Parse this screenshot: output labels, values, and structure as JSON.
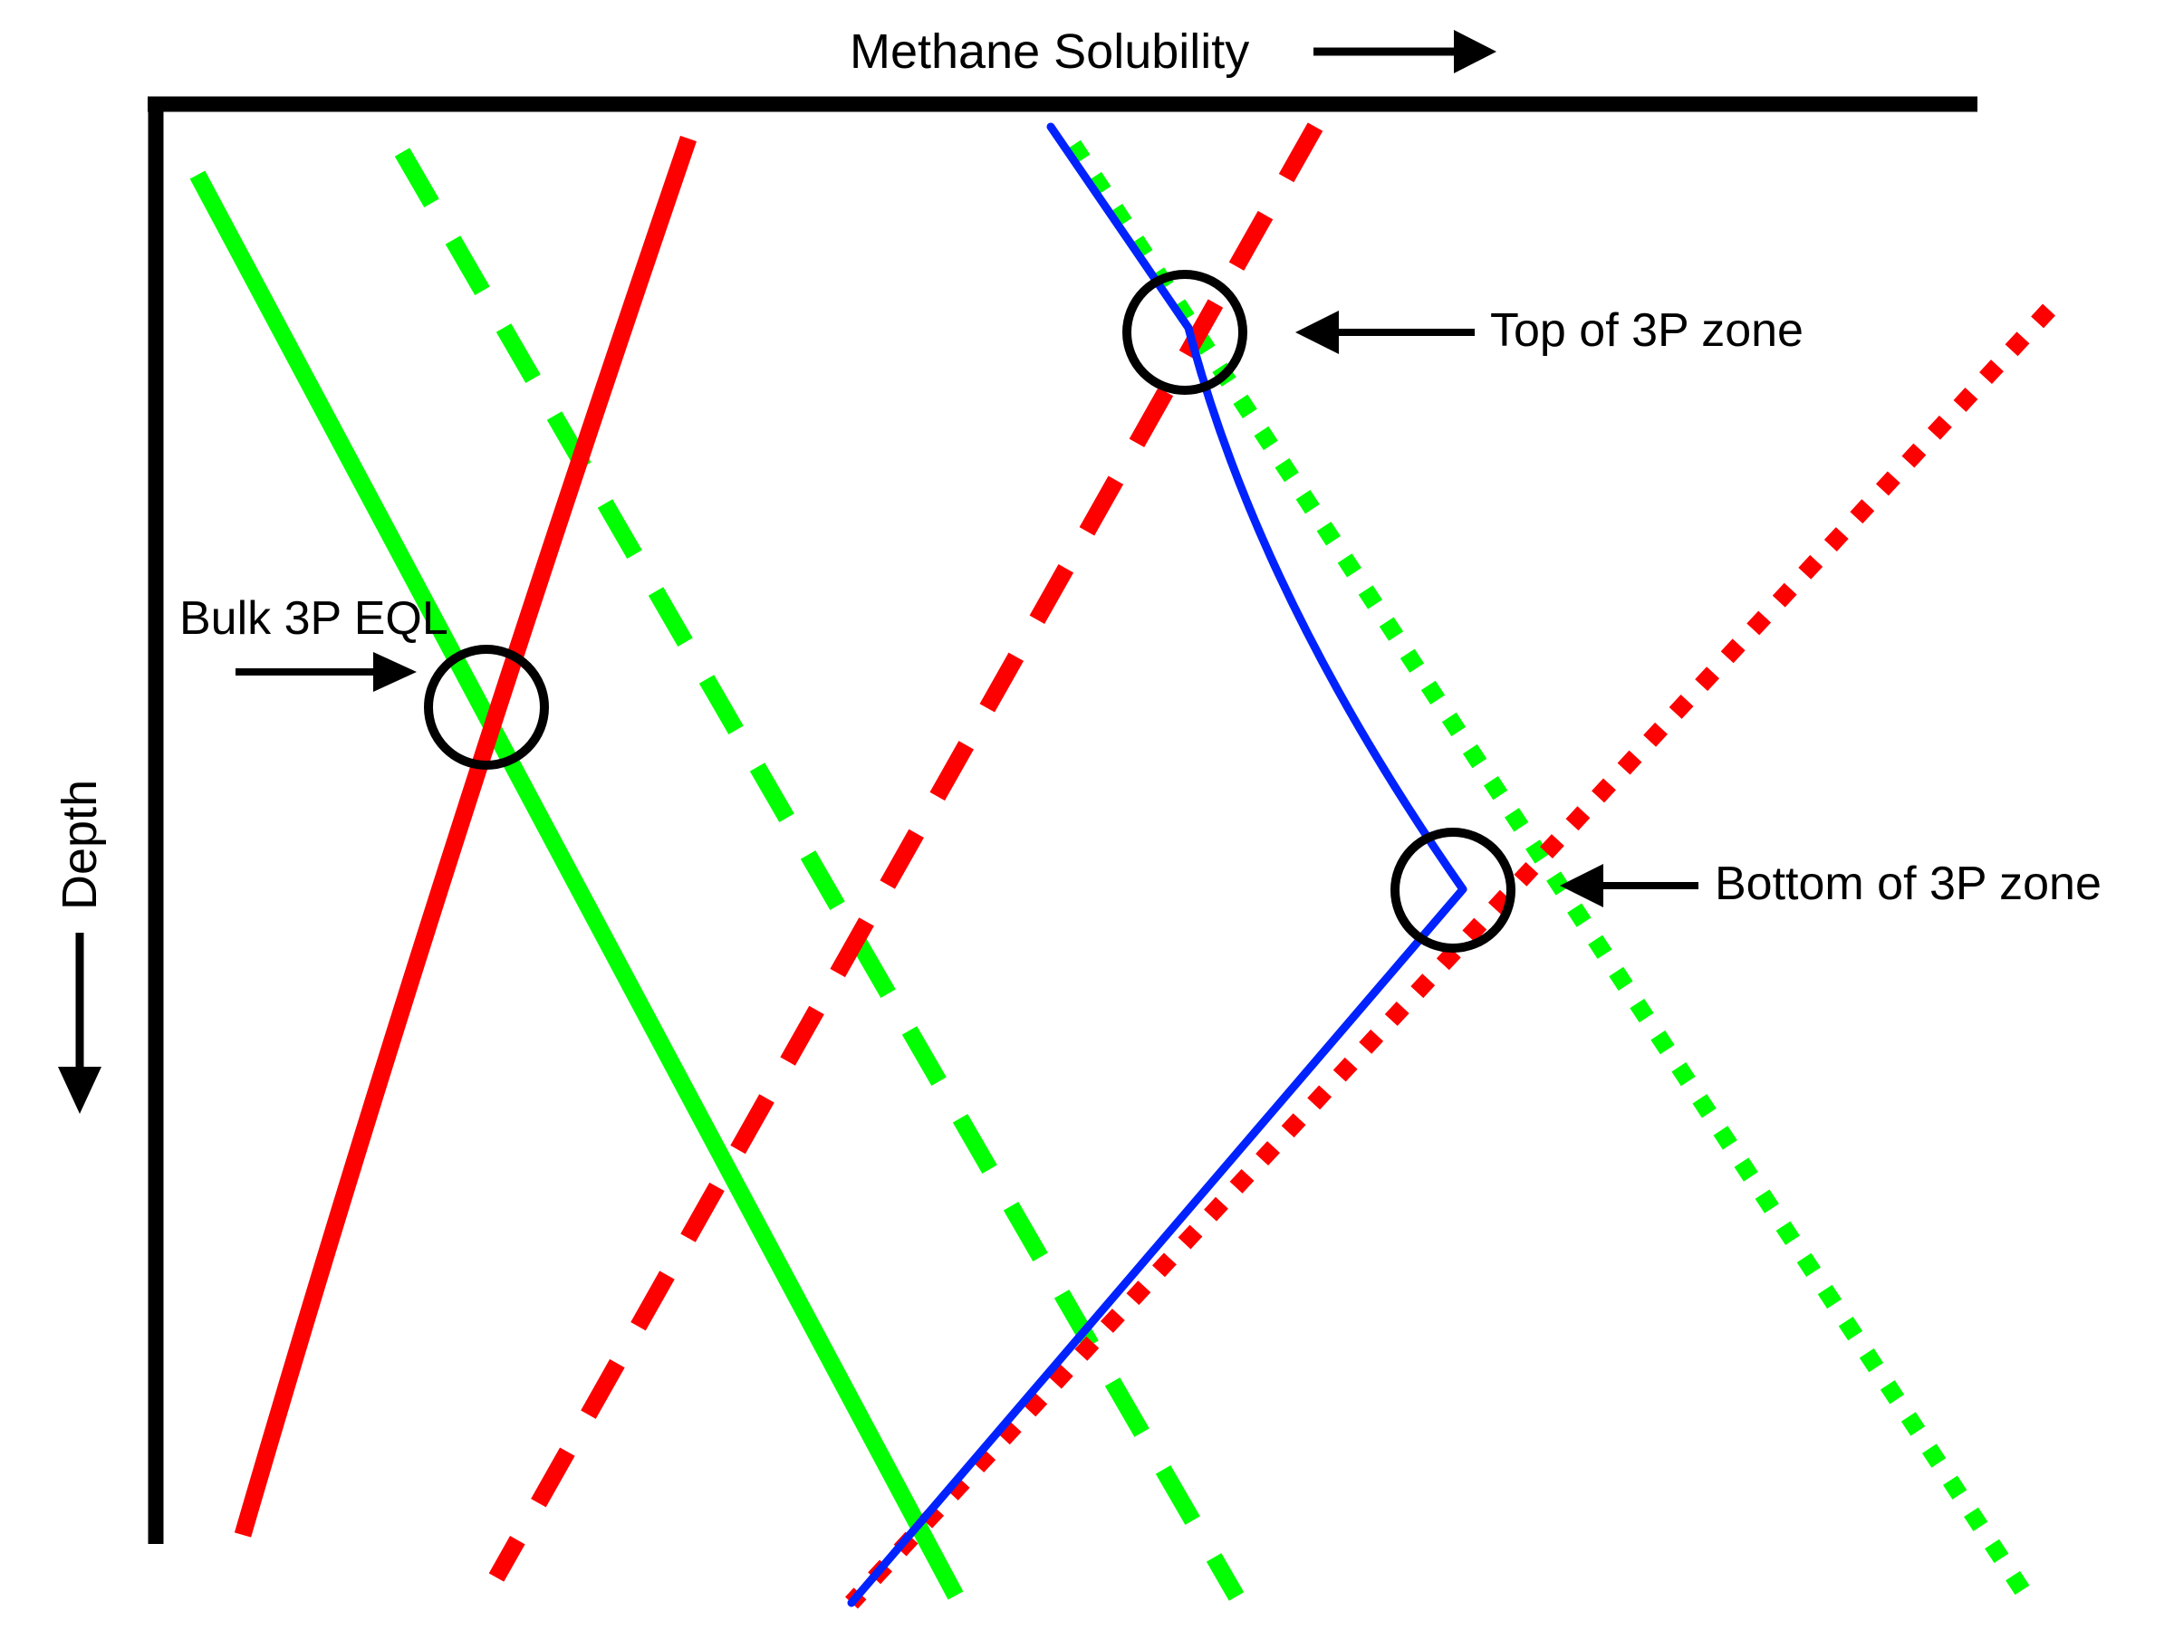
{
  "labels": {
    "x_axis": "Methane Solubility",
    "y_axis": "Depth",
    "bulk_eql": "Bulk 3P EQL",
    "top_zone": "Top of 3P zone",
    "bottom_zone": "Bottom of 3P zone"
  },
  "colors": {
    "axis": "#000000",
    "green": "#00ff00",
    "red": "#ff0000",
    "blue": "#0022ff",
    "marker": "#000000"
  }
}
